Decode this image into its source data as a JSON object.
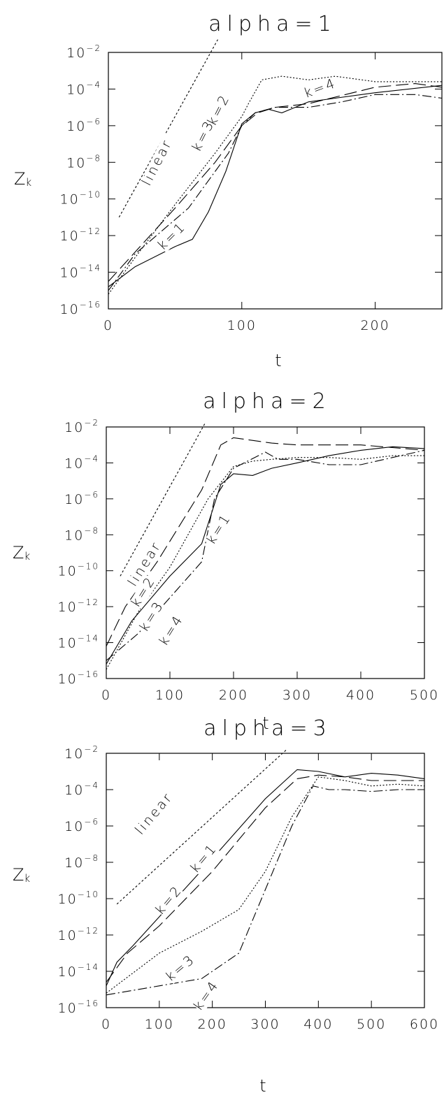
{
  "chart_data": [
    {
      "type": "line",
      "title": "alpha=1",
      "xlabel": "t",
      "ylabel": "Z",
      "ylabel_sub": "k",
      "xlim": [
        0,
        250
      ],
      "ylim_log10": [
        -16,
        -2
      ],
      "yscale": "log",
      "x_ticks": [
        "0",
        "100",
        "200"
      ],
      "y_ticks": [
        -16,
        -14,
        -12,
        -10,
        -8,
        -6,
        -4,
        -2
      ],
      "series": [
        {
          "name": "k=1",
          "style": "solid",
          "points": [
            [
              0,
              -14.8
            ],
            [
              20,
              -13.7
            ],
            [
              50,
              -12.6
            ],
            [
              63,
              -12.2
            ],
            [
              75,
              -10.7
            ],
            [
              88,
              -8.5
            ],
            [
              100,
              -5.9
            ],
            [
              110,
              -5.3
            ],
            [
              120,
              -5.1
            ],
            [
              130,
              -5.3
            ],
            [
              140,
              -5.0
            ],
            [
              150,
              -4.7
            ],
            [
              170,
              -4.5
            ],
            [
              200,
              -4.2
            ],
            [
              250,
              -3.8
            ]
          ]
        },
        {
          "name": "k=2",
          "style": "longdash",
          "points": [
            [
              0,
              -14.5
            ],
            [
              25,
              -12.5
            ],
            [
              50,
              -10.5
            ],
            [
              80,
              -8.0
            ],
            [
              100,
              -6.0
            ],
            [
              112,
              -5.3
            ],
            [
              125,
              -5.0
            ],
            [
              150,
              -4.8
            ],
            [
              200,
              -3.9
            ],
            [
              230,
              -3.7
            ],
            [
              250,
              -3.9
            ]
          ]
        },
        {
          "name": "k=3",
          "style": "dotted",
          "points": [
            [
              0,
              -15.2
            ],
            [
              20,
              -13.2
            ],
            [
              50,
              -10.3
            ],
            [
              80,
              -7.5
            ],
            [
              100,
              -5.5
            ],
            [
              105,
              -4.8
            ],
            [
              115,
              -3.5
            ],
            [
              130,
              -3.3
            ],
            [
              150,
              -3.5
            ],
            [
              170,
              -3.3
            ],
            [
              200,
              -3.6
            ],
            [
              250,
              -3.6
            ]
          ]
        },
        {
          "name": "k=4",
          "style": "dashdot",
          "points": [
            [
              0,
              -15.0
            ],
            [
              20,
              -13.0
            ],
            [
              60,
              -10.5
            ],
            [
              90,
              -7.5
            ],
            [
              100,
              -6.0
            ],
            [
              110,
              -5.3
            ],
            [
              125,
              -5.0
            ],
            [
              150,
              -5.0
            ],
            [
              175,
              -4.7
            ],
            [
              200,
              -4.3
            ],
            [
              230,
              -4.3
            ],
            [
              250,
              -4.5
            ]
          ]
        },
        {
          "name": "linear",
          "style": "shortdash",
          "points": [
            [
              8,
              -11.0
            ],
            [
              82,
              -1.3
            ]
          ]
        }
      ],
      "labels": [
        {
          "text": "linear"
        },
        {
          "text": "k=3"
        },
        {
          "text": "k=2"
        },
        {
          "text": "k=4"
        },
        {
          "text": "k=1"
        }
      ]
    },
    {
      "type": "line",
      "title": "alpha=2",
      "xlabel": "t",
      "ylabel": "Z",
      "ylabel_sub": "k",
      "xlim": [
        0,
        500
      ],
      "ylim_log10": [
        -16,
        -2
      ],
      "yscale": "log",
      "x_ticks": [
        "0",
        "100",
        "200",
        "300",
        "400",
        "500"
      ],
      "y_ticks": [
        -16,
        -14,
        -12,
        -10,
        -8,
        -6,
        -4,
        -2
      ],
      "series": [
        {
          "name": "k=1",
          "style": "solid",
          "points": [
            [
              0,
              -15.2
            ],
            [
              40,
              -12.8
            ],
            [
              100,
              -10.3
            ],
            [
              150,
              -8.5
            ],
            [
              180,
              -5.2
            ],
            [
              200,
              -4.6
            ],
            [
              230,
              -4.7
            ],
            [
              260,
              -4.3
            ],
            [
              300,
              -4.0
            ],
            [
              350,
              -3.6
            ],
            [
              400,
              -3.3
            ],
            [
              450,
              -3.1
            ],
            [
              500,
              -3.2
            ]
          ]
        },
        {
          "name": "k=2",
          "style": "longdash",
          "points": [
            [
              0,
              -14.2
            ],
            [
              30,
              -12.0
            ],
            [
              80,
              -9.5
            ],
            [
              150,
              -5.5
            ],
            [
              180,
              -3.0
            ],
            [
              200,
              -2.6
            ],
            [
              220,
              -2.7
            ],
            [
              260,
              -2.9
            ],
            [
              300,
              -3.0
            ],
            [
              400,
              -3.0
            ],
            [
              500,
              -3.3
            ]
          ]
        },
        {
          "name": "k=3",
          "style": "dotted",
          "points": [
            [
              0,
              -15.5
            ],
            [
              50,
              -12.3
            ],
            [
              100,
              -9.8
            ],
            [
              160,
              -6.0
            ],
            [
              200,
              -4.2
            ],
            [
              230,
              -3.9
            ],
            [
              260,
              -3.8
            ],
            [
              300,
              -3.7
            ],
            [
              350,
              -3.7
            ],
            [
              400,
              -3.8
            ],
            [
              450,
              -3.6
            ],
            [
              500,
              -3.6
            ]
          ]
        },
        {
          "name": "k=4",
          "style": "dashdot",
          "points": [
            [
              0,
              -15.0
            ],
            [
              50,
              -13.5
            ],
            [
              100,
              -11.5
            ],
            [
              150,
              -9.5
            ],
            [
              170,
              -6.0
            ],
            [
              200,
              -4.3
            ],
            [
              250,
              -3.4
            ],
            [
              270,
              -3.8
            ],
            [
              300,
              -3.8
            ],
            [
              350,
              -4.1
            ],
            [
              400,
              -4.1
            ],
            [
              450,
              -3.7
            ],
            [
              500,
              -3.3
            ]
          ]
        },
        {
          "name": "linear",
          "style": "shortdash",
          "points": [
            [
              22,
              -10.3
            ],
            [
              155,
              -1.8
            ]
          ]
        }
      ],
      "labels": [
        {
          "text": "linear"
        },
        {
          "text": "k=2"
        },
        {
          "text": "k=3"
        },
        {
          "text": "k=4"
        },
        {
          "text": "k=1"
        }
      ]
    },
    {
      "type": "line",
      "title": "alpha=3",
      "xlabel": "t",
      "ylabel": "Z",
      "ylabel_sub": "k",
      "xlim": [
        0,
        600
      ],
      "ylim_log10": [
        -16,
        -2
      ],
      "yscale": "log",
      "x_ticks": [
        "0",
        "100",
        "200",
        "300",
        "400",
        "500",
        "600"
      ],
      "y_ticks": [
        -16,
        -14,
        -12,
        -10,
        -8,
        -6,
        -4,
        -2
      ],
      "series": [
        {
          "name": "k=1",
          "style": "solid",
          "points": [
            [
              0,
              -14.8
            ],
            [
              20,
              -13.5
            ],
            [
              50,
              -12.6
            ],
            [
              100,
              -11.0
            ],
            [
              200,
              -7.8
            ],
            [
              300,
              -4.5
            ],
            [
              360,
              -2.9
            ],
            [
              400,
              -3.0
            ],
            [
              450,
              -3.3
            ],
            [
              500,
              -3.1
            ],
            [
              550,
              -3.2
            ],
            [
              600,
              -3.4
            ]
          ]
        },
        {
          "name": "k=2",
          "style": "longdash",
          "points": [
            [
              0,
              -14.6
            ],
            [
              40,
              -13.0
            ],
            [
              100,
              -11.5
            ],
            [
              200,
              -8.5
            ],
            [
              300,
              -5.0
            ],
            [
              360,
              -3.4
            ],
            [
              400,
              -3.2
            ],
            [
              450,
              -3.3
            ],
            [
              500,
              -3.5
            ],
            [
              550,
              -3.5
            ],
            [
              600,
              -3.5
            ]
          ]
        },
        {
          "name": "k=3",
          "style": "dotted",
          "points": [
            [
              0,
              -15.2
            ],
            [
              100,
              -13.0
            ],
            [
              180,
              -11.8
            ],
            [
              250,
              -10.6
            ],
            [
              300,
              -8.5
            ],
            [
              350,
              -5.5
            ],
            [
              400,
              -3.3
            ],
            [
              450,
              -3.5
            ],
            [
              500,
              -3.8
            ],
            [
              550,
              -3.7
            ],
            [
              600,
              -3.8
            ]
          ]
        },
        {
          "name": "k=4",
          "style": "dashdot",
          "points": [
            [
              0,
              -15.3
            ],
            [
              100,
              -14.8
            ],
            [
              180,
              -14.4
            ],
            [
              250,
              -13.0
            ],
            [
              300,
              -9.5
            ],
            [
              350,
              -6.0
            ],
            [
              390,
              -3.8
            ],
            [
              420,
              -4.0
            ],
            [
              450,
              -4.0
            ],
            [
              500,
              -4.1
            ],
            [
              550,
              -4.0
            ],
            [
              600,
              -4.0
            ]
          ]
        },
        {
          "name": "linear",
          "style": "shortdash",
          "points": [
            [
              20,
              -10.3
            ],
            [
              340,
              -1.8
            ]
          ]
        }
      ],
      "labels": [
        {
          "text": "linear"
        },
        {
          "text": "k=1"
        },
        {
          "text": "k=2"
        },
        {
          "text": "k=3"
        },
        {
          "text": "k=4"
        }
      ]
    }
  ]
}
